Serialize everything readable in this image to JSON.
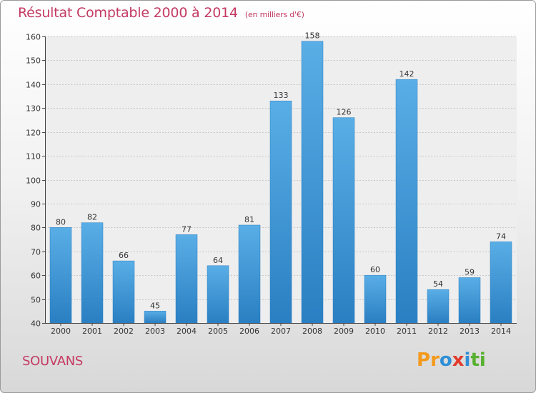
{
  "header": {
    "title": "Résultat Comptable 2000 à 2014",
    "unit": "(en milliers d'€)"
  },
  "footer": {
    "city": "SOUVANS",
    "logo_letters": [
      "P",
      "r",
      "o",
      "x",
      "i",
      "t",
      "i"
    ],
    "logo_colors": [
      "#f39a1c",
      "#f39a1c",
      "#2f8fd6",
      "#e23b2d",
      "#2f8fd6",
      "#58b030",
      "#58b030"
    ]
  },
  "chart_data": {
    "type": "bar",
    "title": "Résultat Comptable 2000 à 2014",
    "xlabel": "",
    "ylabel": "",
    "ylim": [
      40,
      160
    ],
    "yticks": [
      40,
      50,
      60,
      70,
      80,
      90,
      100,
      110,
      120,
      130,
      140,
      150,
      160
    ],
    "grid": true,
    "categories": [
      "2000",
      "2001",
      "2002",
      "2003",
      "2004",
      "2005",
      "2006",
      "2007",
      "2008",
      "2009",
      "2010",
      "2011",
      "2012",
      "2013",
      "2014"
    ],
    "values": [
      80,
      82,
      66,
      45,
      77,
      64,
      81,
      133,
      158,
      126,
      60,
      142,
      54,
      59,
      74
    ],
    "bar_color": "#5aaee6",
    "bar_color_dark": "#2a7fc2"
  }
}
